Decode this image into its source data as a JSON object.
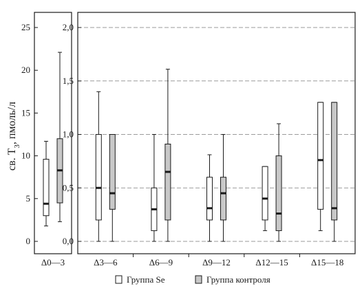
{
  "chart_data": [
    {
      "type": "box",
      "ylabel_prefix": "св. T",
      "ylabel_sub": "3",
      "ylabel_suffix": ", пмоль/л",
      "ylim": [
        0,
        26
      ],
      "yticks": [
        "0",
        "5",
        "10",
        "15",
        "20",
        "25"
      ],
      "ytick_values": [
        0,
        5,
        10,
        15,
        20,
        25
      ],
      "grid": false,
      "categories": [
        "Δ0—3"
      ],
      "series": [
        {
          "group": "se",
          "boxes": [
            {
              "min": 1.8,
              "q1": 3.0,
              "median": 4.4,
              "q3": 9.6,
              "max": 11.7
            }
          ]
        },
        {
          "group": "control",
          "boxes": [
            {
              "min": 2.3,
              "q1": 4.5,
              "median": 8.3,
              "q3": 12.0,
              "max": 22.1
            }
          ]
        }
      ]
    },
    {
      "type": "box",
      "ylim": [
        0,
        2.1
      ],
      "yticks": [
        "0,0",
        "0,5",
        "1,0",
        "1,5",
        "2,0"
      ],
      "ytick_values": [
        0,
        0.5,
        1.0,
        1.5,
        2.0
      ],
      "grid": true,
      "categories": [
        "Δ3—6",
        "Δ6—9",
        "Δ9—12",
        "Δ12—15",
        "Δ15—18"
      ],
      "series": [
        {
          "group": "se",
          "boxes": [
            {
              "min": 0.0,
              "q1": 0.2,
              "median": 0.5,
              "q3": 1.0,
              "max": 1.4
            },
            {
              "min": 0.0,
              "q1": 0.1,
              "median": 0.3,
              "q3": 0.5,
              "max": 1.0
            },
            {
              "min": 0.0,
              "q1": 0.2,
              "median": 0.31,
              "q3": 0.6,
              "max": 0.81
            },
            {
              "min": 0.1,
              "q1": 0.2,
              "median": 0.4,
              "q3": 0.7,
              "max": 0.7
            },
            {
              "min": 0.1,
              "q1": 0.3,
              "median": 0.76,
              "q3": 1.3,
              "max": 1.3
            }
          ]
        },
        {
          "group": "control",
          "boxes": [
            {
              "min": 0.0,
              "q1": 0.3,
              "median": 0.45,
              "q3": 1.0,
              "max": 1.0
            },
            {
              "min": 0.0,
              "q1": 0.2,
              "median": 0.65,
              "q3": 0.91,
              "max": 1.61
            },
            {
              "min": 0.0,
              "q1": 0.2,
              "median": 0.45,
              "q3": 0.6,
              "max": 1.0
            },
            {
              "min": 0.0,
              "q1": 0.1,
              "median": 0.26,
              "q3": 0.8,
              "max": 1.1
            },
            {
              "min": 0.0,
              "q1": 0.2,
              "median": 0.31,
              "q3": 1.3,
              "max": 1.3
            }
          ]
        }
      ]
    }
  ],
  "legend": {
    "items": [
      {
        "key": "se",
        "label": "Группа Se",
        "color": "#ffffff"
      },
      {
        "key": "control",
        "label": "Группа контроля",
        "color": "#c8c8c8"
      }
    ],
    "placement": "bottom"
  },
  "colors": {
    "axis": "#1a1a1a",
    "grid": "#7a7a7a",
    "se_fill": "#ffffff",
    "control_fill": "#c8c8c8"
  }
}
